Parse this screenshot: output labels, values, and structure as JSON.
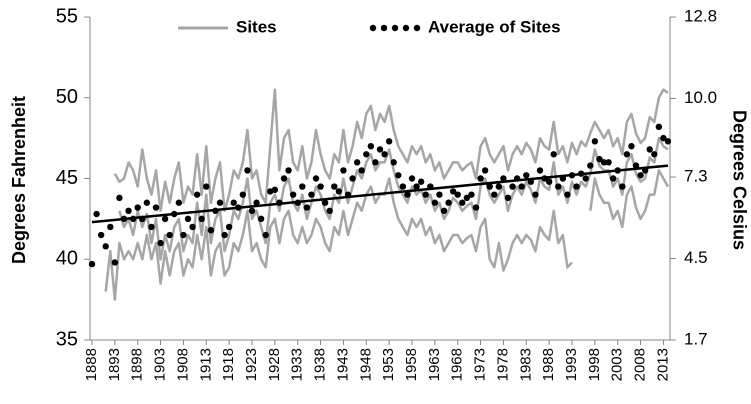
{
  "chart_data": {
    "type": "line",
    "y_label": "Degrees Fahrenheit",
    "y2_label": "Degrees Celsius",
    "x": [
      1888,
      1889,
      1890,
      1891,
      1892,
      1893,
      1894,
      1895,
      1896,
      1897,
      1898,
      1899,
      1900,
      1901,
      1902,
      1903,
      1904,
      1905,
      1906,
      1907,
      1908,
      1909,
      1910,
      1911,
      1912,
      1913,
      1914,
      1915,
      1916,
      1917,
      1918,
      1919,
      1920,
      1921,
      1922,
      1923,
      1924,
      1925,
      1926,
      1927,
      1928,
      1929,
      1930,
      1931,
      1932,
      1933,
      1934,
      1935,
      1936,
      1937,
      1938,
      1939,
      1940,
      1941,
      1942,
      1943,
      1944,
      1945,
      1946,
      1947,
      1948,
      1949,
      1950,
      1951,
      1952,
      1953,
      1954,
      1955,
      1956,
      1957,
      1958,
      1959,
      1960,
      1961,
      1962,
      1963,
      1964,
      1965,
      1966,
      1967,
      1968,
      1969,
      1970,
      1971,
      1972,
      1973,
      1974,
      1975,
      1976,
      1977,
      1978,
      1979,
      1980,
      1981,
      1982,
      1983,
      1984,
      1985,
      1986,
      1987,
      1988,
      1989,
      1990,
      1991,
      1992,
      1993,
      1994,
      1995,
      1996,
      1997,
      1998,
      1999,
      2000,
      2001,
      2002,
      2003,
      2004,
      2005,
      2006,
      2007,
      2008,
      2009,
      2010,
      2011,
      2012,
      2013,
      2014
    ],
    "xlim": [
      1888,
      2014
    ],
    "xticks": [
      1888,
      1893,
      1898,
      1903,
      1908,
      1913,
      1918,
      1923,
      1928,
      1933,
      1938,
      1943,
      1948,
      1953,
      1958,
      1963,
      1968,
      1973,
      1978,
      1983,
      1988,
      1993,
      1998,
      2003,
      2008,
      2013
    ],
    "ylim": [
      35,
      55
    ],
    "yticks": [
      35,
      40,
      45,
      50,
      55
    ],
    "y2lim": [
      1.7,
      12.8
    ],
    "y2ticks": [
      1.7,
      4.5,
      7.3,
      {
        "value": 10,
        "label": "10.0"
      },
      12.8
    ],
    "legend": "top",
    "series": [
      {
        "name": "Sites",
        "color": "#a6a6a6",
        "lines": [
          [
            null,
            null,
            null,
            null,
            null,
            45.3,
            44.8,
            45.0,
            46.0,
            45.5,
            44.5,
            46.8,
            45.0,
            44.0,
            45.5,
            43.0,
            44.8,
            43.5,
            45.0,
            46.0,
            43.5,
            44.5,
            44.0,
            46.5,
            44.0,
            47.0,
            43.5,
            45.0,
            46.0,
            43.0,
            44.0,
            45.5,
            45.0,
            46.0,
            48.0,
            45.0,
            45.5,
            44.0,
            43.5,
            47.0,
            50.5,
            45.5,
            47.5,
            48.0,
            46.0,
            45.5,
            47.0,
            45.0,
            46.0,
            48.0,
            46.5,
            45.5,
            45.0,
            46.5,
            46.0,
            48.0,
            46.0,
            47.0,
            48.5,
            47.5,
            49.0,
            49.5,
            48.0,
            49.0,
            48.5,
            49.5,
            48.0,
            47.0,
            46.5,
            46.0,
            47.0,
            46.5,
            47.0,
            46.0,
            46.5,
            45.5,
            46.0,
            45.0,
            45.5,
            46.0,
            46.0,
            45.5,
            45.8,
            46.0,
            45.0,
            47.0,
            47.5,
            46.5,
            46.0,
            46.5,
            47.0,
            45.5,
            46.5,
            47.0,
            46.5,
            47.2,
            46.8,
            46.0,
            47.5,
            47.0,
            46.8,
            48.5,
            46.5,
            47.0,
            46.0,
            47.2,
            46.5,
            47.3,
            47.0,
            47.8,
            48.5,
            48.0,
            47.5,
            48.0,
            47.0,
            47.5,
            46.5,
            48.5,
            49.0,
            47.8,
            47.2,
            47.5,
            48.8,
            48.5,
            50.0,
            50.5,
            50.3
          ],
          [
            null,
            null,
            null,
            38.0,
            40.5,
            37.5,
            41.0,
            40.0,
            40.5,
            40.0,
            41.0,
            40.0,
            41.5,
            40.0,
            41.0,
            38.5,
            40.5,
            39.0,
            40.5,
            41.0,
            39.0,
            40.0,
            39.5,
            41.5,
            40.0,
            42.0,
            39.0,
            40.5,
            41.0,
            39.0,
            39.5,
            41.0,
            40.5,
            41.5,
            43.0,
            40.5,
            41.0,
            40.0,
            39.5,
            42.0,
            42.5,
            41.0,
            42.5,
            43.0,
            41.5,
            41.0,
            42.0,
            41.0,
            41.5,
            42.5,
            42.0,
            41.0,
            40.5,
            42.0,
            41.5,
            43.0,
            41.5,
            42.5,
            43.5,
            43.0,
            44.0,
            44.5,
            43.5,
            44.0,
            44.0,
            45.0,
            43.5,
            42.5,
            42.0,
            41.5,
            42.5,
            42.0,
            42.5,
            41.5,
            42.0,
            41.0,
            41.5,
            40.5,
            41.0,
            41.5,
            41.5,
            41.0,
            41.3,
            41.5,
            40.5,
            42.0,
            42.5,
            40.0,
            39.5,
            41.0,
            39.3,
            40.0,
            41.0,
            41.5,
            41.0,
            41.5,
            41.2,
            40.5,
            42.0,
            41.5,
            41.2,
            43.0,
            41.0,
            41.5,
            39.5,
            39.8,
            null,
            null,
            null,
            43.0,
            45.0,
            44.0,
            43.5,
            43.5,
            42.5,
            43.0,
            42.0,
            44.0,
            44.5,
            43.2,
            42.5,
            43.0,
            44.0,
            44.0,
            45.5,
            45.0,
            44.5
          ],
          [
            null,
            null,
            null,
            null,
            null,
            null,
            43.0,
            42.0,
            42.5,
            41.5,
            43.0,
            42.0,
            42.8,
            41.0,
            42.5,
            40.0,
            41.5,
            40.5,
            42.0,
            42.5,
            40.5,
            41.5,
            41.0,
            43.5,
            41.5,
            44.0,
            41.0,
            42.5,
            43.0,
            40.5,
            41.5,
            43.0,
            42.5,
            43.5,
            45.0,
            42.5,
            43.0,
            42.0,
            41.0,
            43.5,
            44.0,
            43.0,
            44.5,
            45.0,
            43.5,
            43.0,
            44.0,
            42.5,
            43.5,
            44.5,
            44.0,
            43.0,
            42.5,
            44.0,
            43.5,
            45.0,
            43.5,
            44.5,
            45.5,
            45.0,
            46.0,
            46.5,
            45.5,
            46.0,
            46.0,
            46.8,
            45.5,
            44.5,
            44.0,
            43.5,
            44.5,
            44.0,
            44.3,
            43.5,
            44.0,
            43.0,
            43.5,
            42.5,
            43.0,
            43.8,
            43.5,
            43.0,
            43.3,
            43.5,
            42.5,
            44.5,
            45.0,
            44.0,
            43.5,
            44.0,
            44.5,
            43.0,
            44.0,
            44.5,
            44.0,
            44.8,
            44.3,
            43.5,
            45.0,
            44.5,
            44.3,
            46.0,
            44.0,
            44.5,
            43.5,
            44.8,
            44.0,
            44.8,
            44.5,
            45.3,
            46.8,
            45.8,
            45.5,
            45.5,
            44.5,
            45.0,
            44.0,
            46.0,
            46.5,
            45.3,
            44.8,
            45.0,
            46.3,
            46.0,
            47.5,
            47.0,
            46.8
          ]
        ]
      },
      {
        "name": "Average of Sites",
        "color": "#000000",
        "values": [
          39.7,
          42.8,
          41.5,
          40.8,
          42.0,
          39.8,
          43.8,
          42.5,
          43.0,
          42.5,
          43.2,
          42.5,
          43.5,
          42.0,
          43.2,
          41.0,
          42.5,
          41.5,
          42.8,
          43.5,
          41.5,
          42.5,
          42.0,
          44.0,
          42.5,
          44.5,
          41.8,
          43.0,
          43.5,
          41.5,
          42.0,
          43.5,
          43.2,
          44.0,
          45.5,
          43.0,
          43.5,
          42.5,
          41.5,
          44.2,
          44.3,
          43.5,
          45.0,
          45.5,
          44.0,
          43.5,
          44.5,
          43.2,
          44.0,
          45.0,
          44.5,
          43.5,
          43.0,
          44.5,
          44.2,
          45.5,
          44.0,
          45.0,
          46.0,
          45.5,
          46.5,
          47.0,
          46.0,
          46.8,
          46.5,
          47.3,
          46.0,
          45.2,
          44.5,
          44.0,
          45.0,
          44.5,
          44.8,
          44.0,
          44.5,
          43.5,
          44.0,
          43.0,
          43.5,
          44.2,
          44.0,
          43.5,
          43.8,
          44.0,
          43.2,
          45.0,
          45.5,
          44.5,
          44.0,
          44.5,
          45.0,
          43.8,
          44.5,
          45.0,
          44.5,
          45.2,
          44.8,
          44.0,
          45.5,
          45.0,
          44.8,
          46.5,
          44.5,
          45.0,
          44.0,
          45.2,
          44.5,
          45.3,
          45.0,
          45.8,
          47.3,
          46.2,
          46.0,
          46.0,
          45.0,
          45.5,
          44.5,
          46.5,
          47.0,
          45.8,
          45.2,
          45.5,
          46.8,
          46.5,
          48.2,
          47.5,
          47.3
        ]
      }
    ],
    "trend": {
      "color": "#000000",
      "x": [
        1888,
        2014
      ],
      "values": [
        42.3,
        45.8
      ]
    }
  }
}
